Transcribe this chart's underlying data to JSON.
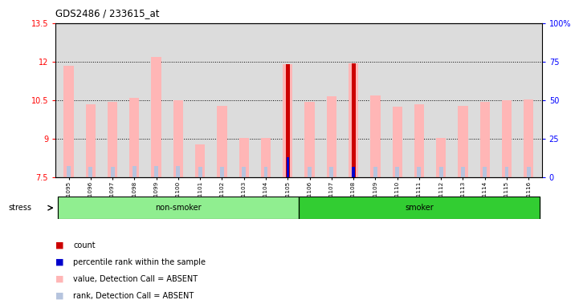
{
  "title": "GDS2486 / 233615_at",
  "samples": [
    "GSM101095",
    "GSM101096",
    "GSM101097",
    "GSM101098",
    "GSM101099",
    "GSM101100",
    "GSM101101",
    "GSM101102",
    "GSM101103",
    "GSM101104",
    "GSM101105",
    "GSM101106",
    "GSM101107",
    "GSM101108",
    "GSM101109",
    "GSM101110",
    "GSM101111",
    "GSM101112",
    "GSM101113",
    "GSM101114",
    "GSM101115",
    "GSM101116"
  ],
  "value_bars": [
    11.85,
    10.35,
    10.45,
    10.6,
    12.2,
    10.5,
    8.8,
    10.3,
    9.05,
    9.05,
    11.9,
    10.45,
    10.65,
    11.95,
    10.7,
    10.25,
    10.35,
    9.05,
    10.3,
    10.45,
    10.5,
    10.55
  ],
  "rank_bars": [
    7.95,
    7.9,
    7.9,
    7.95,
    7.95,
    7.95,
    7.9,
    7.9,
    7.9,
    7.9,
    8.3,
    7.9,
    7.9,
    7.9,
    7.9,
    7.9,
    7.9,
    7.9,
    7.9,
    7.9,
    7.9,
    7.9
  ],
  "count_bars": [
    null,
    null,
    null,
    null,
    null,
    null,
    null,
    null,
    null,
    null,
    11.9,
    null,
    null,
    11.95,
    null,
    null,
    null,
    null,
    null,
    null,
    null,
    null
  ],
  "percentile_bars": [
    null,
    null,
    null,
    null,
    null,
    null,
    null,
    null,
    null,
    null,
    8.3,
    null,
    null,
    7.92,
    null,
    null,
    null,
    null,
    null,
    null,
    null,
    null
  ],
  "non_smoker_count": 11,
  "smoker_count": 11,
  "ymin": 7.5,
  "ymax": 13.5,
  "yticks": [
    7.5,
    9.0,
    10.5,
    12.0,
    13.5
  ],
  "ytick_labels": [
    "7.5",
    "9",
    "10.5",
    "12",
    "13.5"
  ],
  "y2ticks": [
    0,
    25,
    50,
    75,
    100
  ],
  "y2tick_labels": [
    "0",
    "25",
    "50",
    "75",
    "100%"
  ],
  "dotted_lines": [
    9.0,
    10.5,
    12.0
  ],
  "value_color": "#FFB6B6",
  "rank_color": "#B6C4DE",
  "count_color": "#CC0000",
  "percentile_color": "#0000CC",
  "non_smoker_color": "#90EE90",
  "smoker_color": "#32CD32",
  "plot_bg": "#DCDCDC"
}
